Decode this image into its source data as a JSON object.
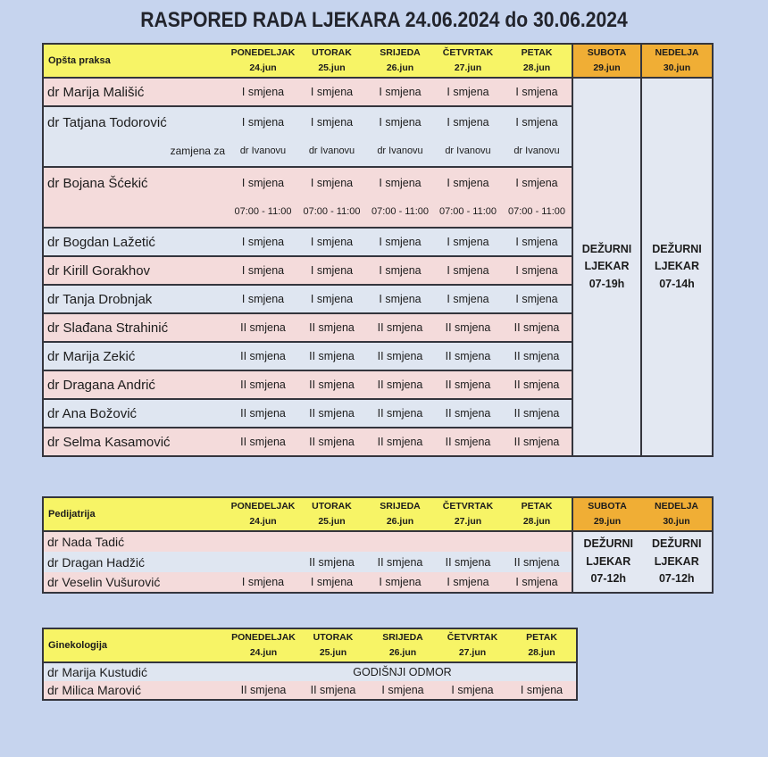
{
  "title": "RASPORED RADA LJEKARA 24.06.2024 do 30.06.2024",
  "colors": {
    "page_bg": "#c6d4ee",
    "header_yellow": "#f7f466",
    "header_orange": "#f0ae35",
    "row_pink": "#f4dbdb",
    "row_blue": "#dfe6f1",
    "weekend_cell_bg": "#e3e8f2",
    "border": "#34353d",
    "text": "#1c1c1c"
  },
  "weekday_headers": [
    {
      "day": "PONEDELJAK",
      "date": "24.jun"
    },
    {
      "day": "UTORAK",
      "date": "25.jun"
    },
    {
      "day": "SRIJEDA",
      "date": "26.jun"
    },
    {
      "day": "ČETVRTAK",
      "date": "27.jun"
    },
    {
      "day": "PETAK",
      "date": "28.jun"
    }
  ],
  "weekend_headers": [
    {
      "day": "SUBOTA",
      "date": "29.jun"
    },
    {
      "day": "NEDELJA",
      "date": "30.jun"
    }
  ],
  "tables": [
    {
      "id": "opsta-praksa",
      "section": "Opšta praksa",
      "has_weekend": true,
      "first_row_tone": "pink",
      "weekend_duty": {
        "style": "split",
        "cells": [
          {
            "lines": [
              "DEŽURNI",
              "LJEKAR",
              "07-19h"
            ]
          },
          {
            "lines": [
              "DEŽURNI",
              "LJEKAR",
              "07-14h"
            ]
          }
        ]
      },
      "rows": [
        {
          "name": "dr Marija Mališić",
          "cells": [
            "I smjena",
            "I smjena",
            "I smjena",
            "I smjena",
            "I smjena"
          ]
        },
        {
          "name": "dr Tatjana Todorović",
          "name2": "zamjena za",
          "cells": [
            "I smjena",
            "I smjena",
            "I smjena",
            "I smjena",
            "I smjena"
          ],
          "cells2": [
            "dr Ivanovu",
            "dr Ivanovu",
            "dr Ivanovu",
            "dr Ivanovu",
            "dr Ivanovu"
          ]
        },
        {
          "name": "dr Bojana Šćekić",
          "cells": [
            "I smjena",
            "I smjena",
            "I smjena",
            "I smjena",
            "I smjena"
          ],
          "cells2": [
            "07:00 - 11:00",
            "07:00 - 11:00",
            "07:00 - 11:00",
            "07:00 - 11:00",
            "07:00 - 11:00"
          ]
        },
        {
          "name": "dr Bogdan Lažetić",
          "cells": [
            "I smjena",
            "I smjena",
            "I smjena",
            "I smjena",
            "I smjena"
          ]
        },
        {
          "name": "dr Kirill Gorakhov",
          "cells": [
            "I smjena",
            "I smjena",
            "I smjena",
            "I smjena",
            "I smjena"
          ]
        },
        {
          "name": "dr Tanja Drobnjak",
          "cells": [
            "I smjena",
            "I smjena",
            "I smjena",
            "I smjena",
            "I smjena"
          ]
        },
        {
          "name": "dr Slađana Strahinić",
          "cells": [
            "II smjena",
            "II smjena",
            "II smjena",
            "II smjena",
            "II smjena"
          ]
        },
        {
          "name": "dr Marija Zekić",
          "cells": [
            "II smjena",
            "II smjena",
            "II smjena",
            "II smjena",
            "II smjena"
          ]
        },
        {
          "name": "dr Dragana Andrić",
          "cells": [
            "II smjena",
            "II smjena",
            "II smjena",
            "II smjena",
            "II smjena"
          ]
        },
        {
          "name": "dr Ana Božović",
          "cells": [
            "II smjena",
            "II smjena",
            "II smjena",
            "II smjena",
            "II smjena"
          ]
        },
        {
          "name": "dr Selma Kasamović",
          "cells": [
            "II smjena",
            "II smjena",
            "II smjena",
            "II smjena",
            "II smjena"
          ]
        }
      ]
    },
    {
      "id": "pedijatrija",
      "section": "Pedijatrija",
      "has_weekend": true,
      "first_row_tone": "pink",
      "weekend_duty": {
        "style": "merged",
        "cells": [
          {
            "lines": [
              "DEŽURNI",
              "LJEKAR",
              "07-12h"
            ]
          },
          {
            "lines": [
              "DEŽURNI",
              "LJEKAR",
              "07-12h"
            ]
          }
        ]
      },
      "rows": [
        {
          "name": "dr Nada Tadić",
          "cells": [
            "",
            "",
            "",
            "",
            ""
          ]
        },
        {
          "name": "dr Dragan Hadžić",
          "cells": [
            "",
            "II smjena",
            "II smjena",
            "II smjena",
            "II smjena"
          ]
        },
        {
          "name": "dr Veselin Vušurović",
          "cells": [
            "I smjena",
            "I smjena",
            "I smjena",
            "I smjena",
            "I smjena"
          ]
        }
      ]
    },
    {
      "id": "ginekologija",
      "section": "Ginekologija",
      "has_weekend": false,
      "first_row_tone": "blue",
      "rows": [
        {
          "name": "dr Marija Kustudić",
          "span_text": "GODIŠNJI ODMOR"
        },
        {
          "name": "dr Milica Marović",
          "cells": [
            "II smjena",
            "II smjena",
            "I smjena",
            "I smjena",
            "I smjena"
          ]
        }
      ]
    }
  ]
}
